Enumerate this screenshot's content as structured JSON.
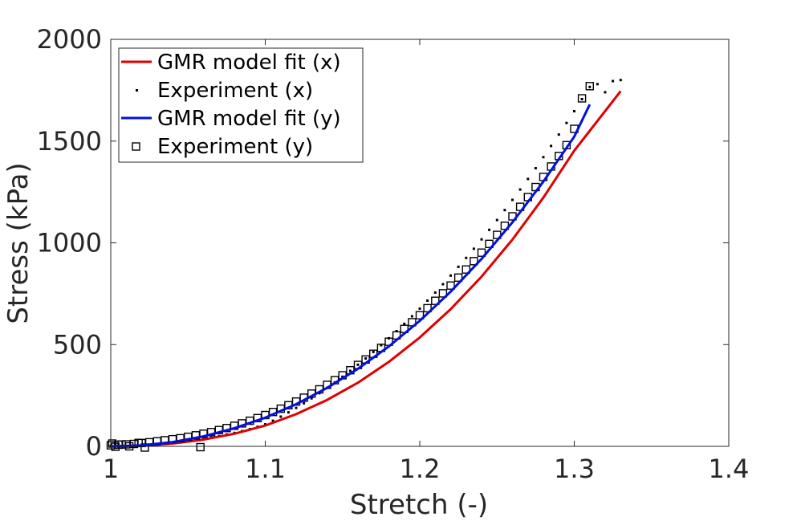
{
  "chart_data": {
    "type": "line",
    "title": "",
    "xlabel": "Stretch (-)",
    "ylabel": "Stress (kPa)",
    "xlim": [
      1,
      1.4
    ],
    "ylim": [
      0,
      2000
    ],
    "xticks": [
      1,
      1.1,
      1.2,
      1.3,
      1.4
    ],
    "xtick_labels": [
      "1",
      "1.1",
      "1.2",
      "1.3",
      "1.4"
    ],
    "yticks": [
      0,
      500,
      1000,
      1500,
      2000
    ],
    "ytick_labels": [
      "0",
      "500",
      "1000",
      "1500",
      "2000"
    ],
    "grid": false,
    "legend_position": "top-left",
    "series": [
      {
        "name": "GMR model fit (x)",
        "kind": "line",
        "color": "#e00000",
        "x": [
          1.0,
          1.02,
          1.04,
          1.06,
          1.08,
          1.1,
          1.12,
          1.14,
          1.16,
          1.18,
          1.2,
          1.22,
          1.24,
          1.26,
          1.28,
          1.3,
          1.33
        ],
        "y": [
          0,
          3,
          14,
          33,
          62,
          102,
          158,
          228,
          313,
          415,
          535,
          674,
          834,
          1016,
          1222,
          1453,
          1745
        ]
      },
      {
        "name": "Experiment (x)",
        "kind": "dots",
        "color": "#000000",
        "x": [
          1.0,
          1.005,
          1.01,
          1.015,
          1.02,
          1.025,
          1.03,
          1.035,
          1.04,
          1.045,
          1.05,
          1.055,
          1.06,
          1.065,
          1.07,
          1.075,
          1.08,
          1.085,
          1.09,
          1.095,
          1.1,
          1.105,
          1.11,
          1.115,
          1.12,
          1.125,
          1.13,
          1.135,
          1.14,
          1.145,
          1.15,
          1.155,
          1.16,
          1.165,
          1.17,
          1.175,
          1.18,
          1.185,
          1.19,
          1.195,
          1.2,
          1.205,
          1.21,
          1.215,
          1.22,
          1.225,
          1.23,
          1.235,
          1.24,
          1.245,
          1.25,
          1.255,
          1.26,
          1.265,
          1.27,
          1.275,
          1.28,
          1.285,
          1.29,
          1.295,
          1.3,
          1.305,
          1.31,
          1.315,
          1.32,
          1.325,
          1.33
        ],
        "y": [
          3,
          2,
          2,
          3,
          4,
          6,
          9,
          12,
          16,
          20,
          25,
          30,
          36,
          43,
          50,
          58,
          66,
          75,
          85,
          96,
          108,
          126,
          146,
          167,
          189,
          212,
          236,
          261,
          287,
          314,
          342,
          371,
          401,
          432,
          464,
          497,
          531,
          566,
          602,
          639,
          677,
          716,
          756,
          797,
          839,
          882,
          926,
          971,
          1017,
          1064,
          1112,
          1161,
          1211,
          1262,
          1314,
          1367,
          1421,
          1476,
          1532,
          1589,
          1647,
          1706,
          1766,
          1780,
          1740,
          1795,
          1800
        ]
      },
      {
        "name": "GMR model fit (y)",
        "kind": "line",
        "color": "#0010e0",
        "x": [
          1.0,
          1.02,
          1.04,
          1.06,
          1.08,
          1.1,
          1.12,
          1.14,
          1.16,
          1.18,
          1.2,
          1.22,
          1.24,
          1.26,
          1.28,
          1.3,
          1.31
        ],
        "y": [
          0,
          5,
          21,
          49,
          89,
          141,
          207,
          287,
          381,
          491,
          617,
          760,
          921,
          1101,
          1301,
          1522,
          1680
        ]
      },
      {
        "name": "Experiment (y)",
        "kind": "squares",
        "color": "#000000",
        "x": [
          1.0,
          1.005,
          1.01,
          1.015,
          1.02,
          1.025,
          1.03,
          1.035,
          1.04,
          1.045,
          1.05,
          1.055,
          1.06,
          1.065,
          1.07,
          1.075,
          1.08,
          1.085,
          1.09,
          1.095,
          1.1,
          1.105,
          1.11,
          1.115,
          1.12,
          1.125,
          1.13,
          1.135,
          1.14,
          1.145,
          1.15,
          1.155,
          1.16,
          1.165,
          1.17,
          1.175,
          1.18,
          1.185,
          1.19,
          1.195,
          1.2,
          1.205,
          1.21,
          1.215,
          1.22,
          1.225,
          1.23,
          1.235,
          1.24,
          1.245,
          1.25,
          1.255,
          1.26,
          1.265,
          1.27,
          1.275,
          1.28,
          1.285,
          1.29,
          1.295,
          1.3,
          1.305,
          1.31,
          1.001,
          1.003,
          1.007,
          1.012,
          1.018,
          1.022,
          1.058
        ],
        "y": [
          5,
          8,
          10,
          12,
          16,
          20,
          25,
          30,
          35,
          40,
          47,
          54,
          62,
          70,
          80,
          90,
          101,
          113,
          126,
          139,
          154,
          169,
          185,
          202,
          220,
          239,
          259,
          280,
          302,
          325,
          349,
          374,
          400,
          427,
          455,
          484,
          514,
          545,
          577,
          610,
          644,
          679,
          715,
          752,
          790,
          829,
          869,
          910,
          952,
          995,
          1039,
          1084,
          1130,
          1177,
          1225,
          1274,
          1324,
          1375,
          1427,
          1480,
          1560,
          1710,
          1770,
          14,
          -2,
          9,
          0,
          17,
          -6,
          -4
        ]
      }
    ]
  }
}
